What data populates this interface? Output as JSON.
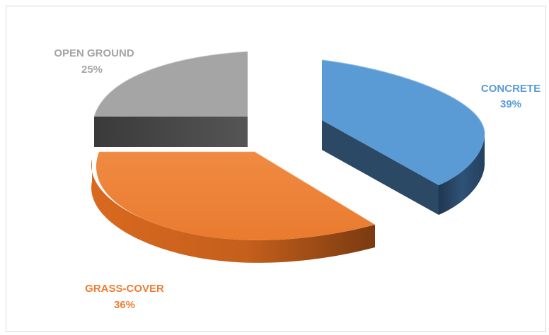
{
  "chart_data": {
    "type": "pie",
    "style": "3d-exploded",
    "title": "",
    "slices": [
      {
        "label": "CONCRETE",
        "value": 39,
        "value_label": "39%",
        "color": "#5b9bd5",
        "side_color": "#2e4a66"
      },
      {
        "label": "GRASS-COVER",
        "value": 36,
        "value_label": "36%",
        "color": "#ed7d31",
        "side_color": "#a04d14"
      },
      {
        "label": "OPEN GROUND",
        "value": 25,
        "value_label": "25%",
        "color": "#a5a5a5",
        "side_color": "#4a4a4a"
      }
    ]
  }
}
